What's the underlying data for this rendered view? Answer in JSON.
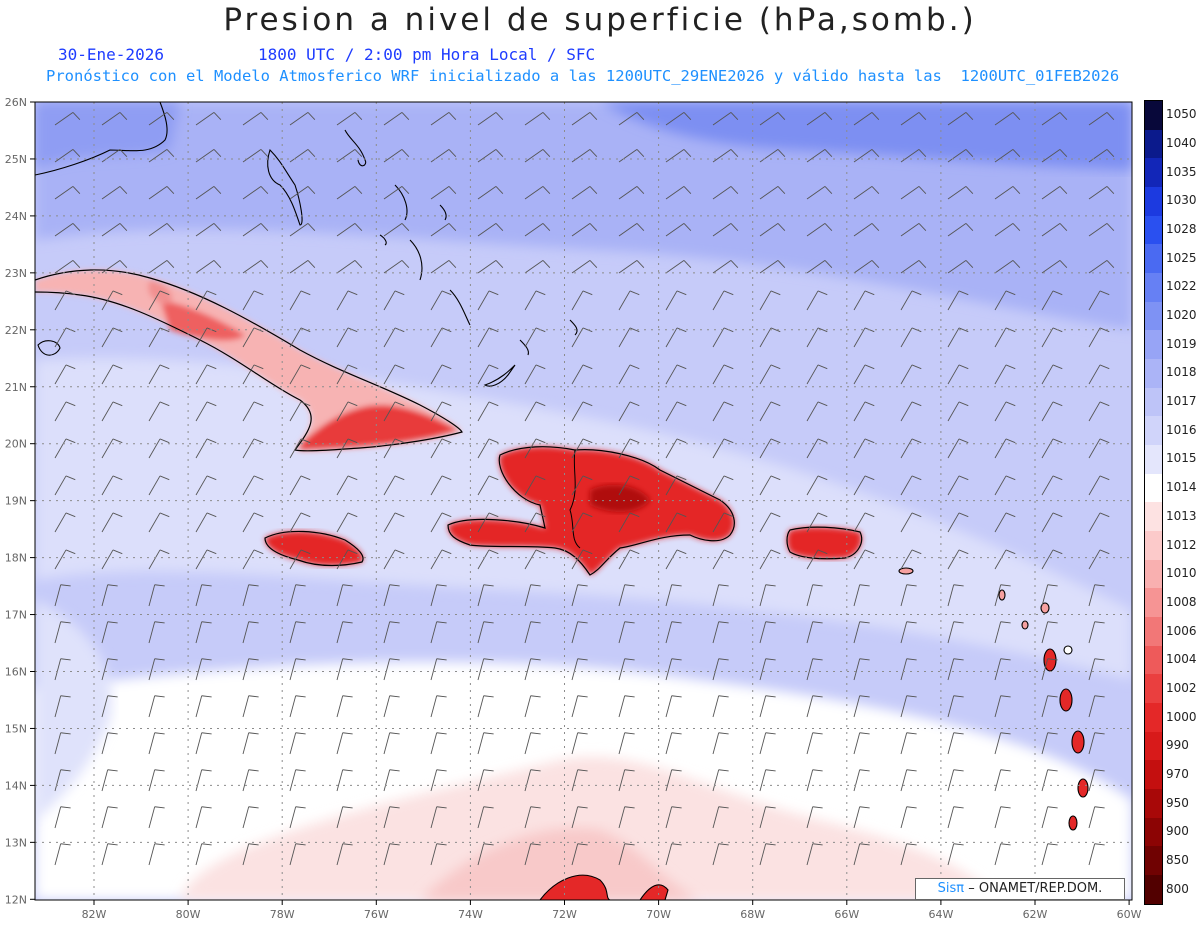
{
  "header": {
    "title": "Presion a nivel de superficie (hPa,somb.)",
    "date": "30-Ene-2026",
    "time_info": "1800 UTC / 2:00 pm Hora Local / SFC",
    "model_info": "Pronóstico con el Modelo Atmosferico WRF inicializado a las 1200UTC_29ENE2026 y válido hasta las  1200UTC_01FEB2026"
  },
  "map": {
    "lat_labels": [
      "26N",
      "25N",
      "24N",
      "23N",
      "22N",
      "21N",
      "20N",
      "19N",
      "18N",
      "17N",
      "16N",
      "15N",
      "14N",
      "13N",
      "12N"
    ],
    "lon_labels": [
      "82W",
      "80W",
      "78W",
      "76W",
      "74W",
      "72W",
      "70W",
      "68W",
      "66W",
      "64W",
      "62W",
      "60W"
    ],
    "islands": [
      "Cuba",
      "Jamaica",
      "Hispaniola",
      "Puerto Rico",
      "Bahamas",
      "Lesser Antilles"
    ]
  },
  "colorbar": {
    "levels": [
      "1050",
      "1040",
      "1035",
      "1030",
      "1028",
      "1025",
      "1022",
      "1020",
      "1019",
      "1018",
      "1017",
      "1016",
      "1015",
      "1014",
      "1013",
      "1012",
      "1010",
      "1008",
      "1006",
      "1004",
      "1002",
      "1000",
      "990",
      "970",
      "950",
      "900",
      "850",
      "800"
    ],
    "colors": [
      "#08083a",
      "#0b1a8c",
      "#1226b8",
      "#1c3ae0",
      "#2a50f0",
      "#4a6af2",
      "#6680f4",
      "#7e92f4",
      "#97a4f6",
      "#abb4f7",
      "#bec4f8",
      "#d0d4fa",
      "#e4e6fc",
      "#ffffff",
      "#fde2e2",
      "#fccaca",
      "#f9b0b0",
      "#f69494",
      "#f27777",
      "#ee5a5a",
      "#ea3f3f",
      "#e42828",
      "#d81a1a",
      "#c40f0f",
      "#a80808",
      "#8c0404",
      "#700202",
      "#520000"
    ]
  },
  "credit": {
    "sis": "Sisπ",
    "text": "– ONAMET/REP.DOM."
  }
}
